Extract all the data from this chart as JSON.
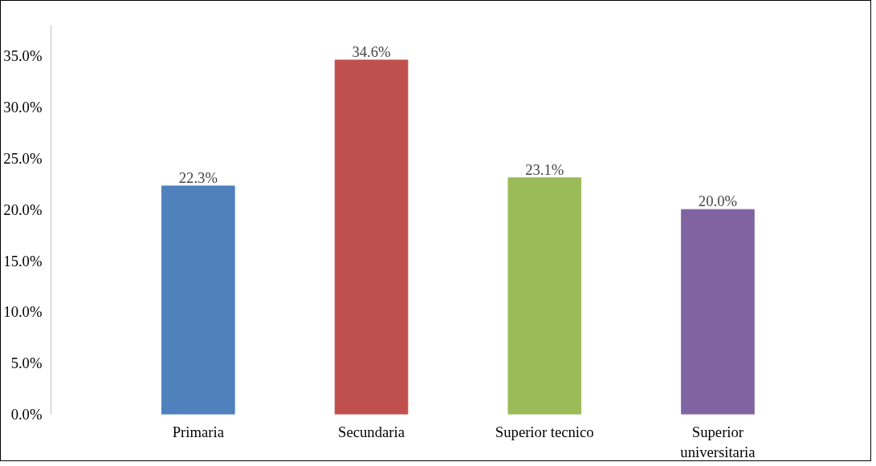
{
  "chart_data": {
    "type": "bar",
    "categories": [
      "Primaria",
      "Secundaria",
      "Superior tecnico",
      "Superior universitaria"
    ],
    "values": [
      22.3,
      34.6,
      23.1,
      20.0
    ],
    "colors": [
      "#4f81bd",
      "#c0504d",
      "#9bbb59",
      "#8064a2"
    ],
    "value_labels": [
      "22.3%",
      "34.6%",
      "23.1%",
      "20.0%"
    ],
    "ylim": [
      0,
      38
    ],
    "yticks": [
      {
        "value": 0,
        "label": "0.0%"
      },
      {
        "value": 5,
        "label": "5.0%"
      },
      {
        "value": 10,
        "label": "10.0%"
      },
      {
        "value": 15,
        "label": "15.0%"
      },
      {
        "value": 20,
        "label": "20.0%"
      },
      {
        "value": 25,
        "label": "25.0%"
      },
      {
        "value": 30,
        "label": "30.0%"
      },
      {
        "value": 35,
        "label": "35.0%"
      }
    ],
    "grid": false
  }
}
